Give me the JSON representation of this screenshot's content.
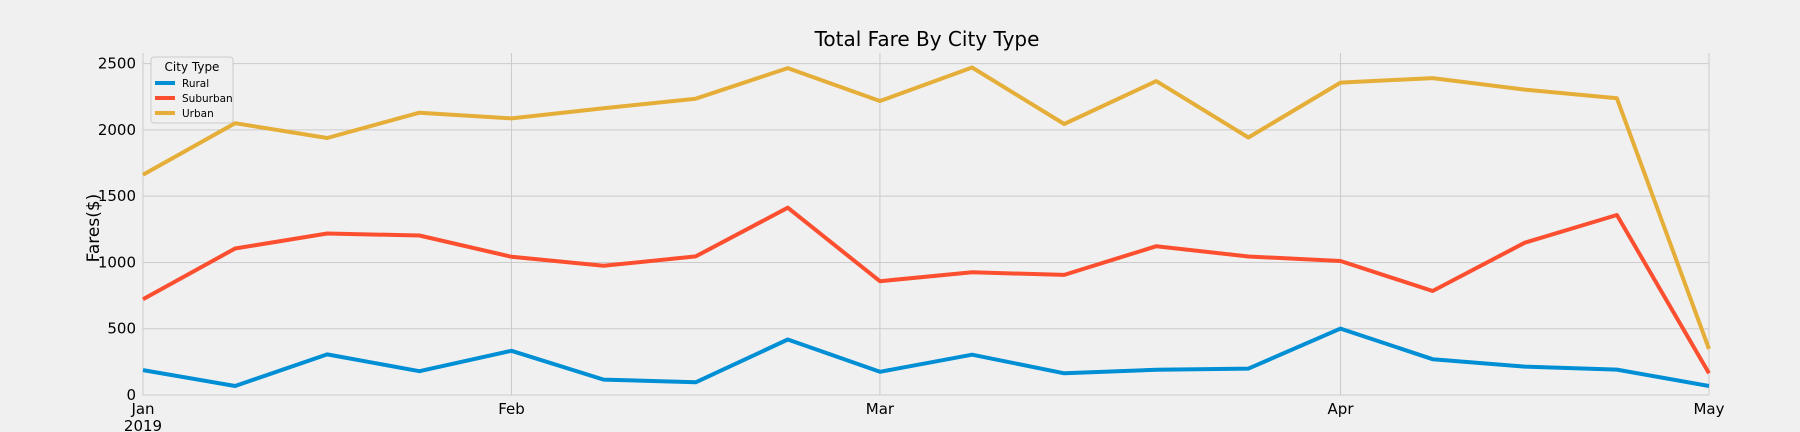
{
  "chart_data": {
    "type": "line",
    "title": "Total Fare By City Type",
    "xlabel": "",
    "ylabel": "Fares($)",
    "x": [
      "2019-01-06",
      "2019-01-13",
      "2019-01-20",
      "2019-01-27",
      "2019-02-03",
      "2019-02-10",
      "2019-02-17",
      "2019-02-24",
      "2019-03-03",
      "2019-03-10",
      "2019-03-17",
      "2019-03-24",
      "2019-03-31",
      "2019-04-07",
      "2019-04-14",
      "2019-04-21",
      "2019-04-28",
      "2019-05-05"
    ],
    "xlim": [
      "2019-01-06",
      "2019-05-05"
    ],
    "x_ticks": [
      {
        "date": "2019-01-06",
        "label": "Jan"
      },
      {
        "date": "2019-02-03",
        "label": "Feb"
      },
      {
        "date": "2019-03-03",
        "label": "Mar"
      },
      {
        "date": "2019-04-07",
        "label": "Apr"
      },
      {
        "date": "2019-05-05",
        "label": "May"
      }
    ],
    "x_year_label": "2019",
    "ylim": [
      0,
      2580
    ],
    "y_ticks": [
      0,
      500,
      1000,
      1500,
      2000,
      2500
    ],
    "grid": true,
    "legend": {
      "title": "City Type",
      "position": "top-left"
    },
    "series": [
      {
        "name": "Rural",
        "color": "#008fd5",
        "values": [
          187.92,
          67.65,
          306.0,
          179.5,
          333.08,
          115.8,
          95.82,
          419.06,
          175.14,
          303.94,
          163.39,
          189.76,
          199.42,
          501.24,
          269.79,
          214.14,
          191.85,
          67.6
        ]
      },
      {
        "name": "Suburban",
        "color": "#fc4f30",
        "values": [
          721.6,
          1105.13,
          1218.2,
          1203.28,
          1042.79,
          974.34,
          1045.5,
          1412.74,
          858.46,
          925.27,
          906.2,
          1122.2,
          1045.06,
          1010.73,
          784.82,
          1149.27,
          1357.75,
          163.48
        ]
      },
      {
        "name": "Urban",
        "color": "#e5ae38",
        "values": [
          1661.68,
          2050.43,
          1939.02,
          2129.51,
          2086.94,
          2162.64,
          2235.07,
          2466.29,
          2218.2,
          2470.93,
          2044.42,
          2368.37,
          1942.77,
          2356.7,
          2390.72,
          2303.8,
          2238.29,
          346.7
        ]
      }
    ]
  }
}
